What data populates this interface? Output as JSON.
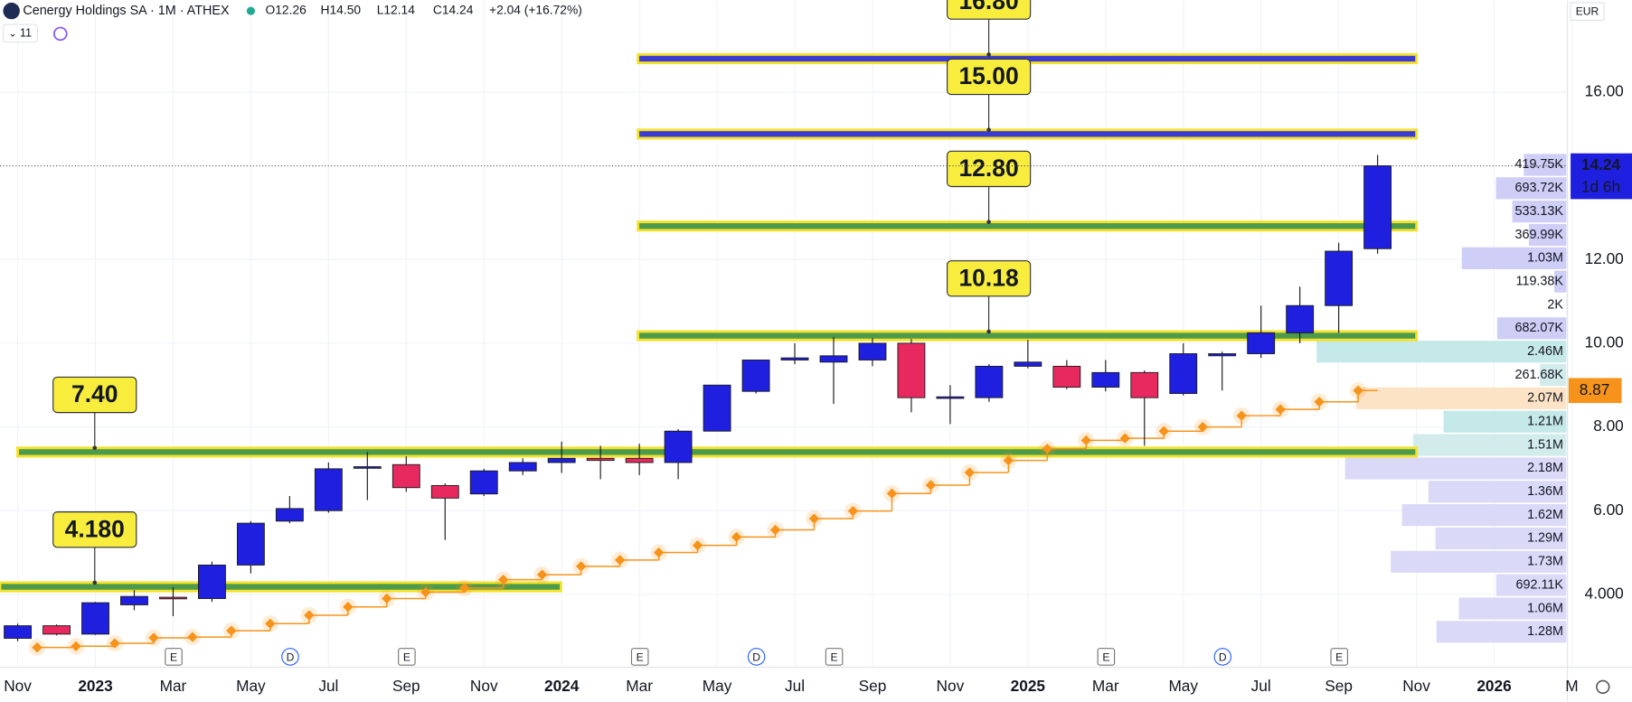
{
  "header": {
    "symbol": "Cenergy Holdings SA · 1M · ATHEX",
    "open": "O12.26",
    "high": "H14.50",
    "low": "L12.14",
    "close": "C14.24",
    "change": "+2.04 (+16.72%)",
    "interval_count": "11",
    "currency": "EUR",
    "countdown": "1d 6h"
  },
  "chart_data": {
    "type": "candlestick",
    "categories": [
      "Nov",
      null,
      "2023",
      null,
      "Mar",
      null,
      "May",
      null,
      "Jul",
      null,
      "Sep",
      null,
      "Nov",
      null,
      "2024",
      null,
      "Mar",
      null,
      "May",
      null,
      "Jul",
      null,
      "Sep",
      null,
      "Nov",
      null,
      "2025",
      null,
      "Mar",
      null,
      "May",
      null,
      "Jul",
      null,
      "Sep",
      null,
      "Nov",
      null,
      "2026",
      null,
      "M"
    ],
    "open": [
      2.95,
      3.25,
      3.05,
      3.75,
      3.93,
      3.9,
      4.7,
      5.75,
      6.0,
      7.05,
      7.1,
      6.6,
      6.4,
      6.95,
      7.15,
      7.25,
      7.25,
      7.15,
      7.9,
      8.85,
      9.6,
      9.55,
      9.6,
      10.0,
      8.7,
      8.7,
      9.45,
      9.45,
      8.95,
      9.3,
      8.8,
      9.7,
      9.75,
      10.25,
      10.9,
      12.26,
      null,
      null,
      null,
      null,
      null
    ],
    "high": [
      3.3,
      3.28,
      3.82,
      4.1,
      4.17,
      4.78,
      5.75,
      6.35,
      7.15,
      7.4,
      7.3,
      6.65,
      7.0,
      7.25,
      7.65,
      7.55,
      7.6,
      7.95,
      9.0,
      9.6,
      10.0,
      10.15,
      10.12,
      10.1,
      9.0,
      9.5,
      10.08,
      9.6,
      9.6,
      9.35,
      10.0,
      9.8,
      10.9,
      11.35,
      12.4,
      14.5,
      null,
      null,
      null,
      null,
      null
    ],
    "low": [
      2.88,
      3.02,
      3.03,
      3.62,
      3.48,
      3.82,
      4.5,
      5.7,
      5.95,
      6.25,
      6.45,
      5.3,
      6.35,
      6.85,
      6.9,
      6.75,
      6.85,
      6.75,
      7.9,
      8.8,
      9.5,
      8.55,
      9.45,
      8.35,
      8.07,
      8.6,
      9.4,
      8.9,
      8.85,
      7.55,
      8.75,
      8.87,
      9.65,
      10.0,
      10.25,
      12.14,
      null,
      null,
      null,
      null,
      null
    ],
    "close": [
      3.25,
      3.05,
      3.8,
      3.95,
      3.92,
      4.7,
      5.7,
      6.05,
      7.0,
      7.05,
      6.55,
      6.3,
      6.95,
      7.15,
      7.25,
      7.2,
      7.15,
      7.9,
      9.0,
      9.6,
      9.65,
      9.7,
      10.0,
      8.7,
      8.72,
      9.45,
      9.55,
      8.95,
      9.3,
      8.7,
      9.75,
      9.75,
      10.25,
      10.9,
      12.2,
      14.24,
      null,
      null,
      null,
      null,
      null
    ],
    "up_color": "#1f1fe0",
    "down_color": "#e8295f",
    "indicator": {
      "color": "#f7931a",
      "values": [
        2.73,
        2.76,
        2.83,
        2.96,
        2.98,
        3.13,
        3.3,
        3.5,
        3.7,
        3.9,
        4.05,
        4.15,
        4.35,
        4.47,
        4.67,
        4.82,
        5.0,
        5.17,
        5.37,
        5.54,
        5.81,
        5.99,
        6.41,
        6.61,
        6.91,
        7.2,
        7.48,
        7.68,
        7.73,
        7.9,
        8.0,
        8.27,
        8.42,
        8.6,
        8.87,
        null,
        null,
        null,
        null,
        null,
        null
      ]
    },
    "levels": [
      {
        "value": 16.8,
        "label": "16.80",
        "color": "#3b3bd4"
      },
      {
        "value": 15.0,
        "label": "15.00",
        "color": "#3b3bd4"
      },
      {
        "value": 12.8,
        "label": "12.80",
        "color": "#4c9a4c"
      },
      {
        "value": 10.18,
        "label": "10.18",
        "color": "#4c9a4c"
      },
      {
        "value": 7.4,
        "label": "7.40",
        "color": "#4c9a4c"
      },
      {
        "value": 4.18,
        "label": "4.180",
        "color": "#4c9a4c"
      }
    ],
    "volume_profile": {
      "values": [
        419750,
        693720,
        533130,
        369990,
        1030000,
        119380,
        2000,
        682070,
        2460000,
        261680,
        2070000,
        1210000,
        1510000,
        2180000,
        1360000,
        1620000,
        1290000,
        1730000,
        692110,
        1060000,
        1280000
      ],
      "value_labels": [
        "419.75K",
        "693.72K",
        "533.13K",
        "369.99K",
        "1.03M",
        "119.38K",
        "2K",
        "682.07K",
        "2.46M",
        "261.68K",
        "2.07M",
        "1.21M",
        "1.51M",
        "2.18M",
        "1.36M",
        "1.62M",
        "1.29M",
        "1.73M",
        "692.11K",
        "1.06M",
        "1.28M"
      ],
      "colors": [
        "#c9c9f5",
        "#c9c9f5",
        "#c9c9f5",
        "#c9c9f5",
        "#c9c9f5",
        "#c9c9f5",
        "#c9c9f5",
        "#c9c9f5",
        "#bfe6e6",
        "#cdeaea",
        "#fde0bf",
        "#bfe6e6",
        "#cdeaea",
        "#d6d6f7",
        "#d6d6f7",
        "#d6d6f7",
        "#d6d6f7",
        "#d6d6f7",
        "#d6d6f7",
        "#d6d6f7",
        "#d6d6f7"
      ]
    },
    "ylim": [
      2.26,
      18.19
    ],
    "yticks": [
      {
        "value": 4,
        "label": "4.000"
      },
      {
        "value": 6,
        "label": "6.00"
      },
      {
        "value": 8,
        "label": "8.00"
      },
      {
        "value": 10,
        "label": "10.00"
      },
      {
        "value": 12,
        "label": "12.00"
      },
      {
        "value": 16,
        "label": "16.00"
      }
    ],
    "grid": true
  }
}
